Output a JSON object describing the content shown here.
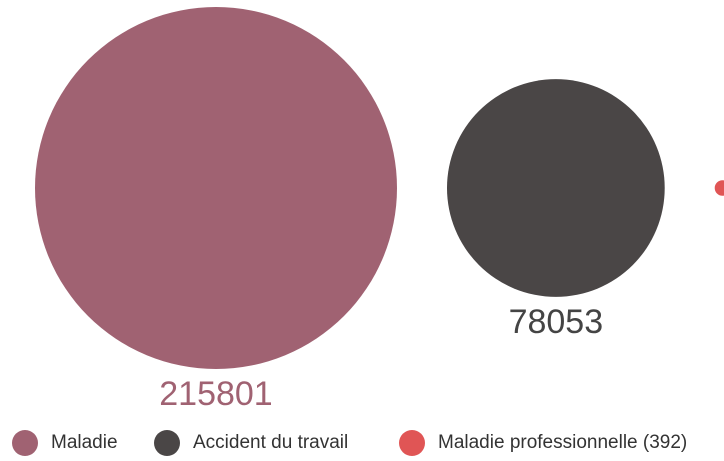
{
  "chart_data": {
    "type": "bubble",
    "categories": [
      "Maladie",
      "Accident du travail",
      "Maladie professionnelle"
    ],
    "values": [
      215801,
      78053,
      392
    ],
    "value_labels": [
      "215801",
      "78053",
      "(392)"
    ],
    "colors": [
      "#a06272",
      "#4a4646",
      "#e05555"
    ],
    "legend": "bottom"
  }
}
